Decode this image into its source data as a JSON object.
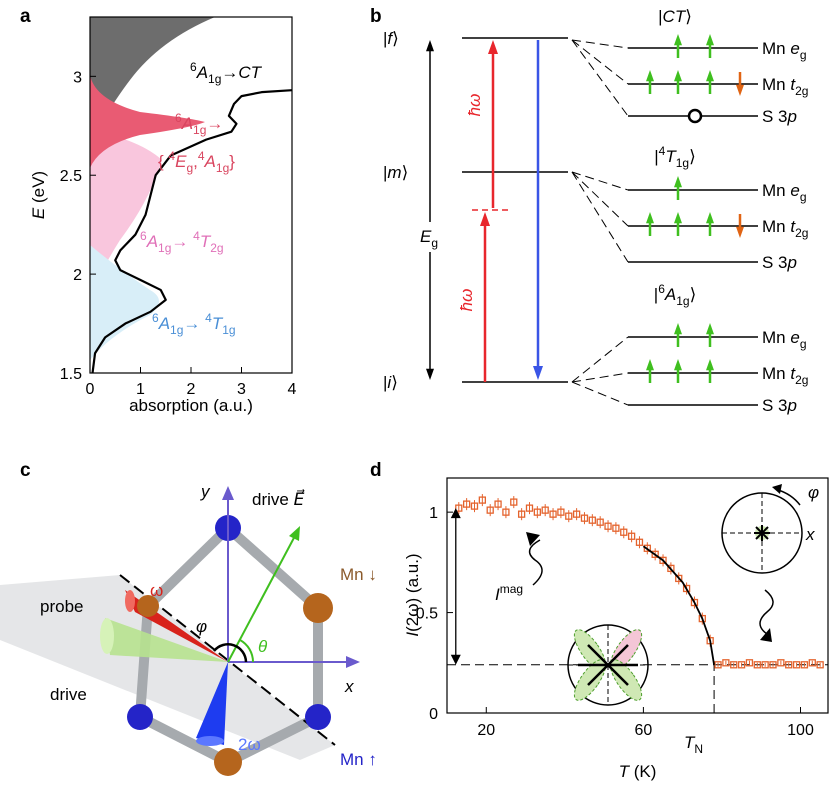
{
  "panel_labels": [
    "a",
    "b",
    "c",
    "d"
  ],
  "chart_data": [
    {
      "type": "line",
      "ylabel": [
        {
          "t": "E",
          "s": "i"
        },
        {
          "t": " (eV)"
        }
      ],
      "xlabel": "absorption (a.u.)",
      "x": [
        0.05,
        0.1,
        0.3,
        0.7,
        1.2,
        1.5,
        1.4,
        1.0,
        0.6,
        0.5,
        0.6,
        0.9,
        1.1,
        1.2,
        1.3,
        1.6,
        2.3,
        2.8,
        2.9,
        2.75,
        2.85,
        3.0,
        3.4,
        4.0
      ],
      "series": [
        {
          "color": "#000000",
          "values": [
            1.5,
            1.6,
            1.68,
            1.75,
            1.81,
            1.87,
            1.92,
            1.97,
            2.02,
            2.07,
            2.12,
            2.2,
            2.3,
            2.4,
            2.5,
            2.6,
            2.68,
            2.72,
            2.76,
            2.8,
            2.86,
            2.9,
            2.92,
            2.93
          ]
        }
      ],
      "xlim": [
        0,
        4
      ],
      "ylim": [
        1.5,
        3.3
      ],
      "xticks": [
        0,
        1,
        2,
        3,
        4
      ],
      "yticks": [
        1.5,
        2,
        2.5,
        3
      ],
      "annotations": [
        {
          "color": "#000000",
          "text": [
            {
              "t": "6",
              "s": "sup"
            },
            {
              "t": "A",
              "s": "i"
            },
            {
              "t": "1g",
              "s": "sub"
            },
            {
              "t": "→"
            },
            {
              "t": "CT",
              "s": "i"
            }
          ]
        },
        {
          "color": "#d9455f",
          "text": [
            {
              "t": "6",
              "s": "sup"
            },
            {
              "t": "A",
              "s": "i"
            },
            {
              "t": "1g",
              "s": "sub"
            },
            {
              "t": "→"
            }
          ]
        },
        {
          "color": "#d9455f",
          "text": [
            {
              "t": "{ "
            },
            {
              "t": "4",
              "s": "sup"
            },
            {
              "t": "E",
              "s": "i"
            },
            {
              "t": "g",
              "s": "sub"
            },
            {
              "t": ","
            },
            {
              "t": "4",
              "s": "sup"
            },
            {
              "t": "A",
              "s": "i"
            },
            {
              "t": "1g",
              "s": "sub"
            },
            {
              "t": "}"
            }
          ]
        },
        {
          "color": "#e070b8",
          "text": [
            {
              "t": "6",
              "s": "sup"
            },
            {
              "t": "A",
              "s": "i"
            },
            {
              "t": "1g",
              "s": "sub"
            },
            {
              "t": "→ "
            },
            {
              "t": "4",
              "s": "sup"
            },
            {
              "t": "T",
              "s": "i"
            },
            {
              "t": "2g",
              "s": "sub"
            }
          ]
        },
        {
          "color": "#4a8fd6",
          "text": [
            {
              "t": "6",
              "s": "sup"
            },
            {
              "t": "A",
              "s": "i"
            },
            {
              "t": "1g",
              "s": "sub"
            },
            {
              "t": "→ "
            },
            {
              "t": "4",
              "s": "sup"
            },
            {
              "t": "T",
              "s": "i"
            },
            {
              "t": "1g",
              "s": "sub"
            }
          ]
        }
      ]
    },
    {
      "type": "scatter",
      "xlabel": [
        {
          "t": "T",
          "s": "i"
        },
        {
          "t": " (K)"
        }
      ],
      "ylabel": [
        {
          "t": "I",
          "s": "i"
        },
        {
          "t": "(2ω) (a.u.)"
        }
      ],
      "x": [
        13,
        15,
        17,
        19,
        21,
        23,
        25,
        27,
        29,
        31,
        33,
        35,
        37,
        39,
        41,
        43,
        45,
        47,
        49,
        51,
        53,
        55,
        57,
        59,
        61,
        63,
        65,
        67,
        69,
        71,
        73,
        75,
        77,
        79,
        81,
        83,
        85,
        87,
        89,
        91,
        93,
        95,
        97,
        99,
        101,
        103,
        105
      ],
      "series": [
        {
          "color": "#e4632d",
          "values": [
            1.02,
            1.04,
            1.03,
            1.06,
            1.01,
            1.04,
            1.0,
            1.05,
            0.99,
            1.02,
            1.0,
            1.01,
            0.99,
            1.0,
            0.98,
            0.99,
            0.97,
            0.96,
            0.95,
            0.93,
            0.92,
            0.9,
            0.88,
            0.85,
            0.82,
            0.79,
            0.76,
            0.72,
            0.67,
            0.62,
            0.55,
            0.47,
            0.36,
            0.24,
            0.25,
            0.24,
            0.24,
            0.25,
            0.24,
            0.24,
            0.24,
            0.25,
            0.24,
            0.24,
            0.24,
            0.25,
            0.24
          ],
          "errors": [
            0.03,
            0.03,
            0.03,
            0.03,
            0.03,
            0.03,
            0.03,
            0.03,
            0.03,
            0.03,
            0.03,
            0.03,
            0.03,
            0.03,
            0.03,
            0.03,
            0.03,
            0.03,
            0.03,
            0.03,
            0.03,
            0.03,
            0.03,
            0.03,
            0.03,
            0.03,
            0.03,
            0.03,
            0.03,
            0.03,
            0.03,
            0.03,
            0.03,
            0.01,
            0.01,
            0.01,
            0.01,
            0.01,
            0.01,
            0.01,
            0.01,
            0.01,
            0.01,
            0.01,
            0.01,
            0.01,
            0.01
          ]
        }
      ],
      "fit": {
        "color": "#000000",
        "x": [
          60,
          65,
          70,
          73,
          75,
          77,
          78
        ],
        "values": [
          0.83,
          0.76,
          0.65,
          0.55,
          0.47,
          0.36,
          0.24
        ]
      },
      "xlim": [
        10,
        107
      ],
      "ylim": [
        0,
        1.17
      ],
      "xticks": [
        20,
        60,
        100
      ],
      "yticks": [
        0,
        0.5,
        1
      ],
      "reference_lines": {
        "y": 0.24,
        "x": 78
      },
      "annotations": {
        "magnitude": [
          {
            "t": "I",
            "s": "i"
          },
          {
            "t": "mag",
            "s": "sup"
          }
        ],
        "transition": [
          {
            "t": "T",
            "s": "i"
          },
          {
            "t": "N",
            "s": "sub"
          }
        ],
        "polar_axis": "x",
        "polar_angle": "φ"
      }
    }
  ],
  "level_diagram": {
    "states": [
      [
        {
          "t": "|"
        },
        {
          "t": "f",
          "s": "i"
        },
        {
          "t": "⟩"
        }
      ],
      [
        {
          "t": "|"
        },
        {
          "t": "m",
          "s": "i"
        },
        {
          "t": "⟩"
        }
      ],
      [
        {
          "t": "|"
        },
        {
          "t": "i",
          "s": "i"
        },
        {
          "t": "⟩"
        }
      ]
    ],
    "gap": [
      {
        "t": "E",
        "s": "i"
      },
      {
        "t": "g",
        "s": "sub"
      }
    ],
    "photon": "ħω",
    "groups": [
      {
        "title": [
          {
            "t": "|"
          },
          {
            "t": "CT",
            "s": "i"
          },
          {
            "t": "⟩"
          }
        ],
        "orbitals": [
          [
            {
              "t": "Mn "
            },
            {
              "t": "e",
              "s": "i"
            },
            {
              "t": "g",
              "s": "sub"
            }
          ],
          [
            {
              "t": "Mn "
            },
            {
              "t": "t",
              "s": "i"
            },
            {
              "t": "2g",
              "s": "sub"
            }
          ],
          [
            {
              "t": "S   3"
            },
            {
              "t": "p",
              "s": "i"
            }
          ]
        ]
      },
      {
        "title": [
          {
            "t": "|"
          },
          {
            "t": "4",
            "s": "sup"
          },
          {
            "t": "T",
            "s": "i"
          },
          {
            "t": "1g",
            "s": "sub"
          },
          {
            "t": "⟩"
          }
        ],
        "orbitals": [
          [
            {
              "t": "Mn "
            },
            {
              "t": "e",
              "s": "i"
            },
            {
              "t": "g",
              "s": "sub"
            }
          ],
          [
            {
              "t": "Mn "
            },
            {
              "t": "t",
              "s": "i"
            },
            {
              "t": "2g",
              "s": "sub"
            }
          ],
          [
            {
              "t": "S   3"
            },
            {
              "t": "p",
              "s": "i"
            }
          ]
        ]
      },
      {
        "title": [
          {
            "t": "|"
          },
          {
            "t": "6",
            "s": "sup"
          },
          {
            "t": "A",
            "s": "i"
          },
          {
            "t": "1g",
            "s": "sub"
          },
          {
            "t": "⟩"
          }
        ],
        "orbitals": [
          [
            {
              "t": "Mn "
            },
            {
              "t": "e",
              "s": "i"
            },
            {
              "t": "g",
              "s": "sub"
            }
          ],
          [
            {
              "t": "Mn "
            },
            {
              "t": "t",
              "s": "i"
            },
            {
              "t": "2g",
              "s": "sub"
            }
          ],
          [
            {
              "t": "S   3"
            },
            {
              "t": "p",
              "s": "i"
            }
          ]
        ]
      }
    ]
  },
  "lattice_diagram": {
    "x_axis": "x",
    "y_axis": "y",
    "drive_field": [
      {
        "t": "drive "
      },
      {
        "t": "E⃗",
        "s": "i"
      }
    ],
    "spin_down": "Mn ↓",
    "spin_up": "Mn ↑",
    "phi": "φ",
    "theta": "θ",
    "probe": "probe",
    "omega": "ω",
    "drive_beam": "drive",
    "second_harmonic": "2ω"
  }
}
